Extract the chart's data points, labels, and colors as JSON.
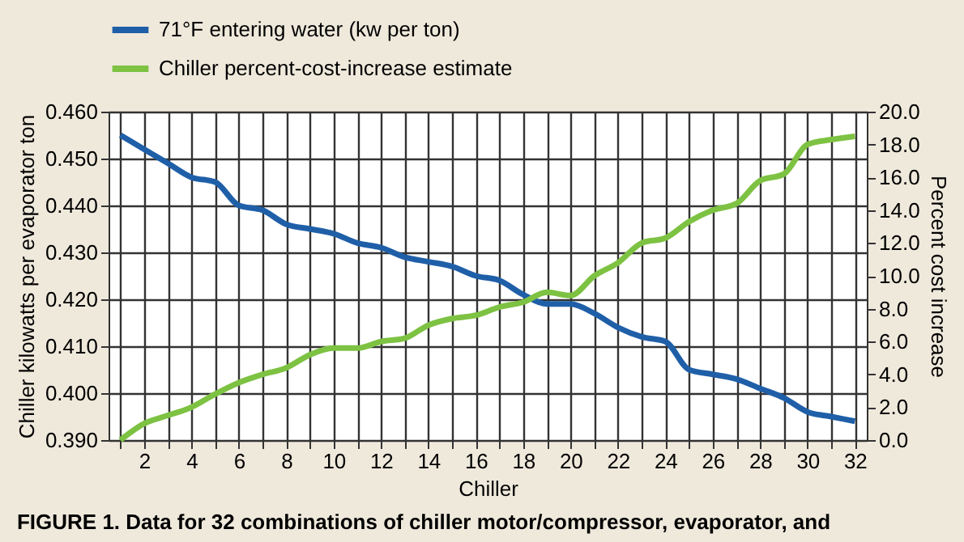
{
  "chart_data": {
    "type": "line",
    "xlabel": "Chiller",
    "ylabel": "Chiller kilowatts per evaporator ton",
    "y2label": "Percent cost increase",
    "annotations": [
      "FIGURE 1. Data for 32 combinations of chiller motor/compressor, evaporator, and"
    ],
    "x": [
      1,
      2,
      3,
      4,
      5,
      6,
      7,
      8,
      9,
      10,
      11,
      12,
      13,
      14,
      15,
      16,
      17,
      18,
      19,
      20,
      21,
      22,
      23,
      24,
      25,
      26,
      27,
      28,
      29,
      30,
      31,
      32
    ],
    "xlim": [
      0.5,
      32.5
    ],
    "xticks": [
      {
        "value": 1,
        "label": null
      },
      2,
      {
        "value": 3,
        "label": null
      },
      4,
      {
        "value": 5,
        "label": null
      },
      6,
      {
        "value": 7,
        "label": null
      },
      8,
      {
        "value": 9,
        "label": null
      },
      10,
      {
        "value": 11,
        "label": null
      },
      12,
      {
        "value": 13,
        "label": null
      },
      14,
      {
        "value": 15,
        "label": null
      },
      16,
      {
        "value": 17,
        "label": null
      },
      18,
      {
        "value": 19,
        "label": null
      },
      20,
      {
        "value": 21,
        "label": null
      },
      22,
      {
        "value": 23,
        "label": null
      },
      24,
      {
        "value": 25,
        "label": null
      },
      26,
      {
        "value": 27,
        "label": null
      },
      28,
      {
        "value": 29,
        "label": null
      },
      30,
      {
        "value": 31,
        "label": null
      },
      32
    ],
    "ylim": [
      0.39,
      0.46
    ],
    "yticks": [
      {
        "value": 0.39,
        "label": "0.390"
      },
      {
        "value": 0.4,
        "label": "0.400"
      },
      {
        "value": 0.41,
        "label": "0.410"
      },
      {
        "value": 0.42,
        "label": "0.420"
      },
      {
        "value": 0.43,
        "label": "0.430"
      },
      {
        "value": 0.44,
        "label": "0.440"
      },
      {
        "value": 0.45,
        "label": "0.450"
      },
      {
        "value": 0.46,
        "label": "0.460"
      }
    ],
    "y2lim": [
      0,
      20
    ],
    "y2ticks": [
      {
        "value": 0,
        "label": "0.0"
      },
      {
        "value": 2,
        "label": "2.0"
      },
      {
        "value": 4,
        "label": "4.0"
      },
      {
        "value": 6,
        "label": "6.0"
      },
      {
        "value": 8,
        "label": "8.0"
      },
      {
        "value": 10,
        "label": "10.0"
      },
      {
        "value": 12,
        "label": "12.0"
      },
      {
        "value": 14,
        "label": "14.0"
      },
      {
        "value": 16,
        "label": "16.0"
      },
      {
        "value": 18,
        "label": "18.0"
      },
      {
        "value": 20,
        "label": "20.0"
      }
    ],
    "grid": true,
    "legend": "top",
    "marker": "none",
    "line_style": "solid",
    "series": [
      {
        "name": "71°F entering water (kw per ton)",
        "color": "#1f5fa8",
        "values": [
          0.455,
          0.452,
          0.449,
          0.446,
          0.445,
          0.44,
          0.439,
          0.436,
          0.435,
          0.434,
          0.432,
          0.431,
          0.429,
          0.428,
          0.427,
          0.425,
          0.424,
          0.421,
          0.419,
          0.419,
          0.417,
          0.414,
          0.412,
          0.411,
          0.405,
          0.404,
          0.403,
          0.401,
          0.399,
          0.396,
          0.395,
          0.394
        ]
      },
      {
        "name": "Chiller percent-cost-increase estimate",
        "color": "#7dc242",
        "axis": "y2",
        "values": [
          0.0,
          1.0,
          1.5,
          2.0,
          2.8,
          3.5,
          4.0,
          4.4,
          5.2,
          5.6,
          5.6,
          6.0,
          6.2,
          7.0,
          7.4,
          7.6,
          8.1,
          8.4,
          9.0,
          8.8,
          10.0,
          10.8,
          12.0,
          12.3,
          13.3,
          14.0,
          14.4,
          15.8,
          16.2,
          18.0,
          18.3,
          18.5
        ]
      }
    ]
  }
}
